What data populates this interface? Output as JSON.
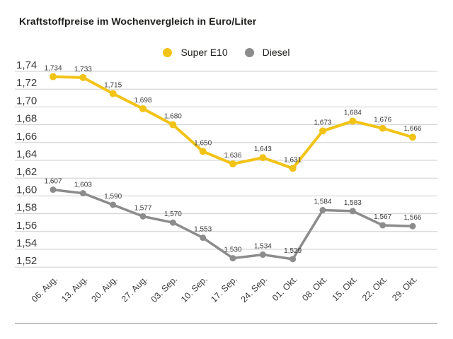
{
  "title": "Kraftstoffpreise im Wochenvergleich in Euro/Liter",
  "colors": {
    "title_text": "#1d1d1b",
    "axis_text": "#3a3a3a",
    "value_text": "#3a3a3a",
    "grid": "#cdcdcd",
    "divider": "#c2c2c2"
  },
  "chart_data": {
    "type": "line",
    "title": "Kraftstoffpreise im Wochenvergleich in Euro/Liter",
    "unit": "Euro/Liter",
    "categories": [
      "06. Aug.",
      "13. Aug.",
      "20. Aug.",
      "27. Aug.",
      "03. Sep.",
      "10. Sep.",
      "17. Sep.",
      "24. Sep.",
      "01. Okt.",
      "08. Okt.",
      "15. Okt.",
      "22. Okt.",
      "29. Okt."
    ],
    "series": [
      {
        "name": "Super E10",
        "color": "#f2c317",
        "values": [
          1.734,
          1.733,
          1.715,
          1.698,
          1.68,
          1.65,
          1.636,
          1.643,
          1.631,
          1.673,
          1.684,
          1.676,
          1.666
        ]
      },
      {
        "name": "Diesel",
        "color": "#8c8c8c",
        "values": [
          1.607,
          1.603,
          1.59,
          1.577,
          1.57,
          1.553,
          1.53,
          1.534,
          1.529,
          1.584,
          1.583,
          1.567,
          1.566
        ]
      }
    ],
    "y_ticks": [
      "1,74",
      "1,72",
      "1,70",
      "1,68",
      "1,66",
      "1,64",
      "1,62",
      "1,60",
      "1,58",
      "1,56",
      "1,54",
      "1,52"
    ],
    "ylim": [
      1.52,
      1.74
    ],
    "y_step": 0.02,
    "decimal_separator": ",",
    "grid": true,
    "legend_position": "top-center",
    "point_labels": true
  }
}
